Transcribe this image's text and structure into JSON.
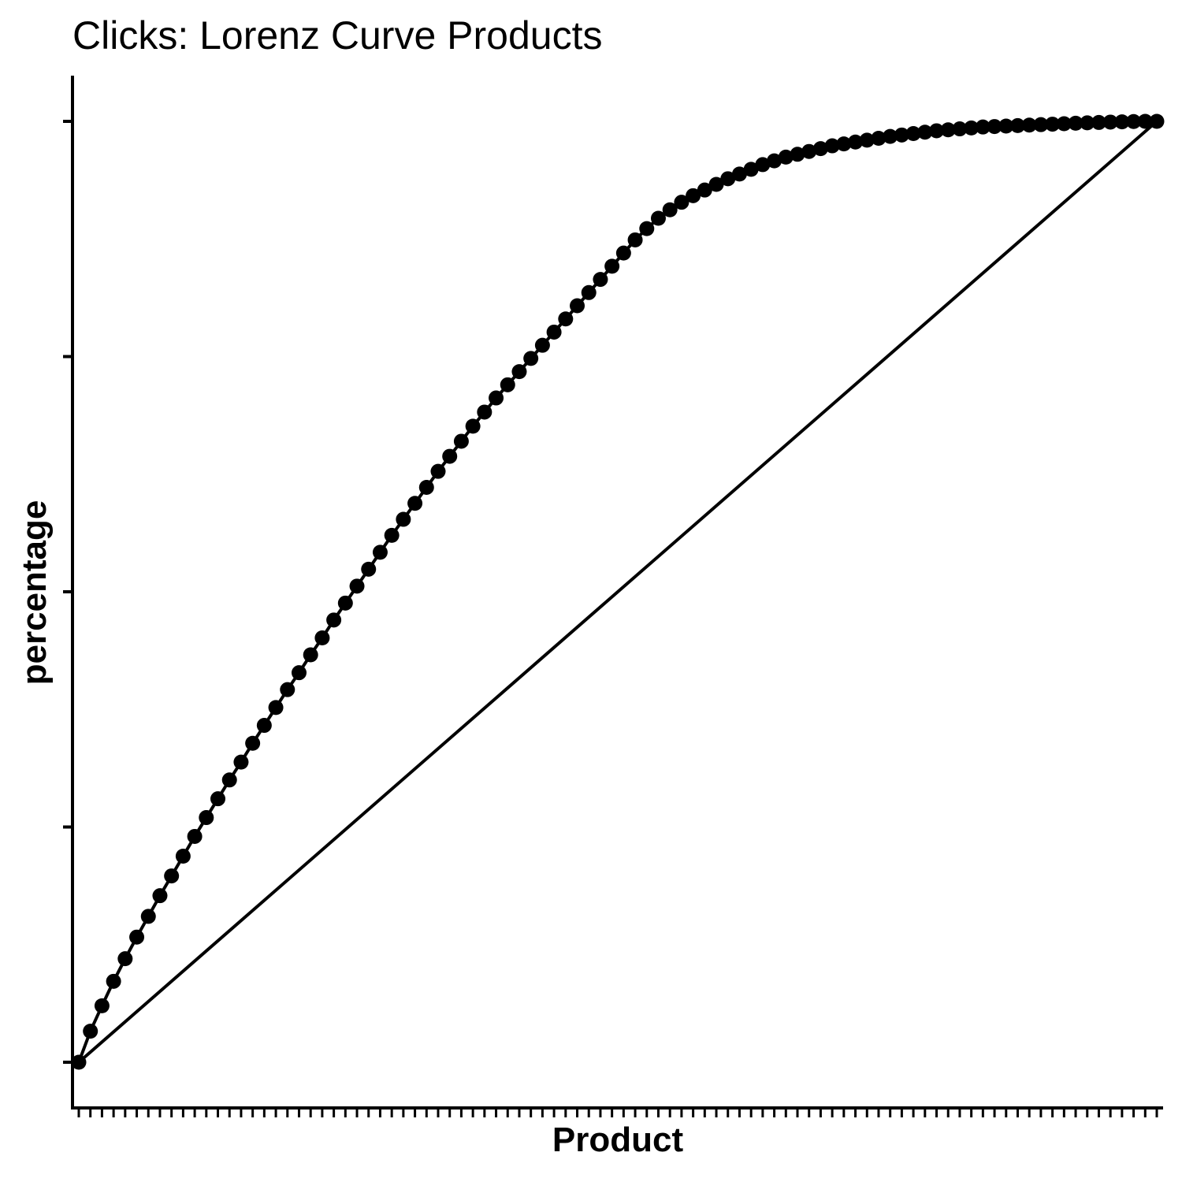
{
  "chart_data": {
    "type": "line",
    "title": "Clicks: Lorenz Curve Products",
    "xlabel": "Product",
    "ylabel": "percentage",
    "x_tick_labels_shown": false,
    "y_tick_labels_shown": false,
    "xlim": [
      0,
      93
    ],
    "ylim": [
      0,
      100
    ],
    "y_ticks": [
      0,
      25,
      50,
      75,
      100
    ],
    "grid": false,
    "legend": "none",
    "colors": {
      "line": "#000000",
      "points": "#000000",
      "axis": "#000000"
    },
    "series": [
      {
        "y": [
          0,
          3.3,
          6.0,
          8.6,
          11.0,
          13.3,
          15.5,
          17.7,
          19.8,
          21.9,
          24.0,
          26.0,
          28.0,
          30.0,
          31.9,
          33.9,
          35.8,
          37.7,
          39.6,
          41.4,
          43.3,
          45.1,
          47.0,
          48.8,
          50.6,
          52.4,
          54.2,
          56.0,
          57.7,
          59.4,
          61.1,
          62.8,
          64.4,
          66.0,
          67.6,
          69.1,
          70.6,
          72.0,
          73.4,
          74.8,
          76.2,
          77.6,
          79.0,
          80.4,
          81.8,
          83.2,
          84.6,
          86.0,
          87.4,
          88.6,
          89.7,
          90.6,
          91.4,
          92.1,
          92.7,
          93.3,
          93.9,
          94.4,
          94.9,
          95.4,
          95.8,
          96.2,
          96.5,
          96.8,
          97.1,
          97.4,
          97.6,
          97.8,
          98.0,
          98.2,
          98.4,
          98.55,
          98.7,
          98.85,
          99.0,
          99.1,
          99.2,
          99.3,
          99.4,
          99.45,
          99.5,
          99.55,
          99.6,
          99.65,
          99.7,
          99.75,
          99.8,
          99.84,
          99.88,
          99.92,
          99.95,
          99.98,
          100,
          100
        ]
      },
      {
        "x": [
          0,
          93
        ],
        "y": [
          0,
          100
        ]
      }
    ]
  }
}
